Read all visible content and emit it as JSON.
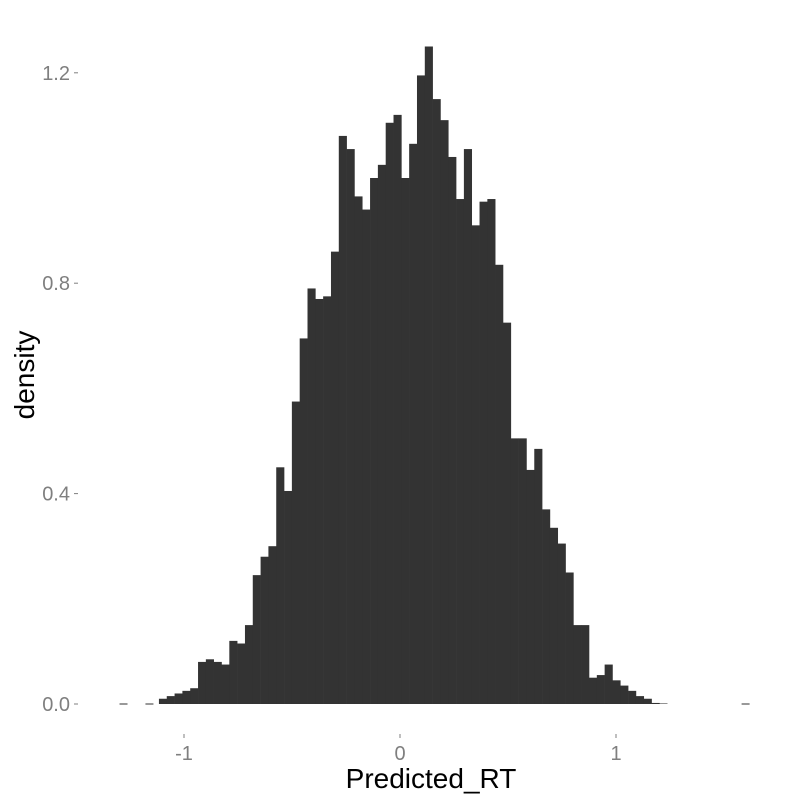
{
  "chart_data": {
    "type": "bar",
    "subtype": "histogram",
    "xlabel": "Predicted_RT",
    "ylabel": "density",
    "xlim": [
      -1.3,
      1.6
    ],
    "ylim": [
      -0.07,
      1.3
    ],
    "x_ticks": [
      {
        "value": -1,
        "label": "-1"
      },
      {
        "value": 0,
        "label": "0"
      },
      {
        "value": 1,
        "label": "1"
      }
    ],
    "y_ticks": [
      {
        "value": 0.0,
        "label": "0.0"
      },
      {
        "value": 0.4,
        "label": "0.4"
      },
      {
        "value": 0.8,
        "label": "0.8"
      },
      {
        "value": 1.2,
        "label": "1.2"
      }
    ],
    "grid": false,
    "bar_color": "#333333",
    "bin_width": 0.0362,
    "bin_start": -1.116,
    "densities": [
      0.01,
      0.015,
      0.02,
      0.025,
      0.03,
      0.08,
      0.085,
      0.08,
      0.075,
      0.12,
      0.115,
      0.15,
      0.245,
      0.28,
      0.3,
      0.45,
      0.405,
      0.575,
      0.695,
      0.79,
      0.77,
      0.775,
      0.86,
      1.08,
      1.055,
      0.965,
      0.94,
      1.0,
      1.025,
      1.105,
      1.12,
      1.0,
      1.065,
      1.195,
      1.25,
      1.15,
      1.11,
      1.04,
      0.96,
      1.055,
      0.91,
      0.955,
      0.96,
      0.835,
      0.725,
      0.505,
      0.505,
      0.445,
      0.485,
      0.37,
      0.335,
      0.305,
      0.25,
      0.15,
      0.15,
      0.05,
      0.055,
      0.075,
      0.045,
      0.035,
      0.025,
      0.015,
      0.01,
      0.002,
      0.001
    ],
    "rug_ticks_at_zero": [
      -1.28,
      -1.16,
      1.6
    ]
  }
}
